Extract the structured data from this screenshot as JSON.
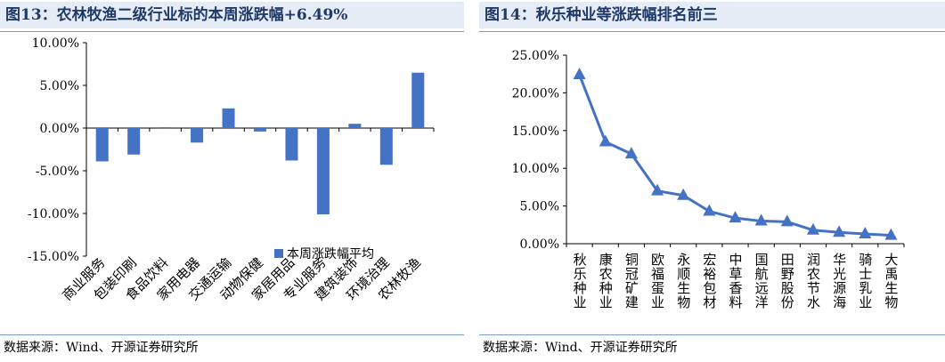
{
  "left_panel": {
    "title": "图13：农林牧渔二级行业标的本周涨跌幅+6.49%",
    "source": "数据来源：Wind、开源证券研究所"
  },
  "right_panel": {
    "title": "图14：秋乐种业等涨跌幅排名前三",
    "source": "数据来源：Wind、开源证券研究所"
  },
  "chart_data": [
    {
      "type": "bar",
      "title": "图13：农林牧渔二级行业标的本周涨跌幅+6.49%",
      "categories": [
        "商业服务",
        "包装印刷",
        "食品饮料",
        "家用电器",
        "交通运输",
        "动物保健",
        "家居用品",
        "专业服务",
        "建筑装饰",
        "环境治理",
        "农林牧渔"
      ],
      "series": [
        {
          "name": "本周涨跌幅平均",
          "values": [
            -3.9,
            -3.1,
            0.1,
            -1.7,
            2.3,
            -0.4,
            -3.8,
            -10.1,
            0.5,
            -4.3,
            6.49
          ]
        }
      ],
      "ylim": [
        -15,
        10
      ],
      "yticks": [
        -15,
        -10,
        -5,
        0,
        5,
        10
      ],
      "ytick_labels": [
        "-15.00%",
        "-10.00%",
        "-5.00%",
        "0.00%",
        "5.00%",
        "10.00%"
      ],
      "legend": "bottom-right",
      "color": "#4472c4"
    },
    {
      "type": "line",
      "title": "图14：秋乐种业等涨跌幅排名前三",
      "categories": [
        "秋乐种业",
        "康农种业",
        "铜冠矿建",
        "欧福蛋业",
        "永顺生物",
        "宏裕包材",
        "中草香料",
        "国航远洋",
        "田野股份",
        "润农节水",
        "华光源海",
        "骑士乳业",
        "大禹生物"
      ],
      "series": [
        {
          "name": "涨跌幅",
          "values": [
            22.4,
            13.5,
            11.9,
            7.0,
            6.4,
            4.3,
            3.4,
            3.0,
            2.9,
            1.8,
            1.5,
            1.3,
            1.1
          ]
        }
      ],
      "ylim": [
        0,
        25
      ],
      "yticks": [
        0,
        5,
        10,
        15,
        20,
        25
      ],
      "ytick_labels": [
        "0.00%",
        "5.00%",
        "10.00%",
        "15.00%",
        "20.00%",
        "25.00%"
      ],
      "color": "#4472c4"
    }
  ]
}
